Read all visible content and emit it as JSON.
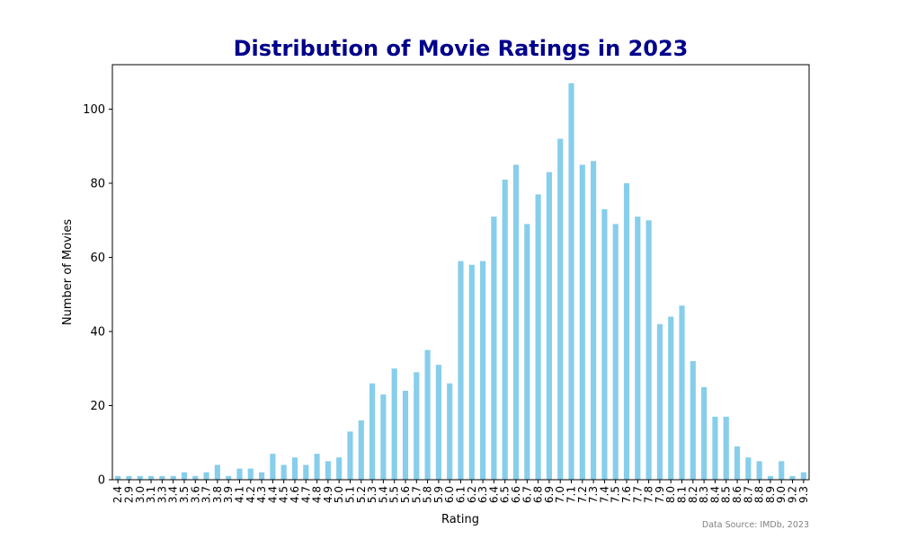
{
  "chart_data": {
    "type": "bar",
    "title": "Distribution of Movie Ratings in 2023",
    "xlabel": "Rating",
    "ylabel": "Number of Movies",
    "ylim": [
      0,
      112
    ],
    "yticks": [
      0,
      20,
      40,
      60,
      80,
      100
    ],
    "bar_color": "#87CEEB",
    "title_color": "#00008B",
    "grid": false,
    "categories": [
      "2.4",
      "2.9",
      "3.0",
      "3.1",
      "3.3",
      "3.4",
      "3.5",
      "3.6",
      "3.7",
      "3.8",
      "3.9",
      "4.1",
      "4.2",
      "4.3",
      "4.4",
      "4.5",
      "4.6",
      "4.7",
      "4.8",
      "4.9",
      "5.0",
      "5.1",
      "5.2",
      "5.3",
      "5.4",
      "5.5",
      "5.6",
      "5.7",
      "5.8",
      "5.9",
      "6.0",
      "6.1",
      "6.2",
      "6.3",
      "6.4",
      "6.5",
      "6.6",
      "6.7",
      "6.8",
      "6.9",
      "7.0",
      "7.1",
      "7.2",
      "7.3",
      "7.4",
      "7.5",
      "7.6",
      "7.7",
      "7.8",
      "7.9",
      "8.0",
      "8.1",
      "8.2",
      "8.3",
      "8.4",
      "8.5",
      "8.6",
      "8.7",
      "8.8",
      "8.9",
      "9.0",
      "9.2",
      "9.3"
    ],
    "values": [
      1,
      1,
      1,
      1,
      1,
      1,
      2,
      1,
      2,
      4,
      1,
      3,
      3,
      2,
      7,
      4,
      6,
      4,
      7,
      5,
      6,
      13,
      16,
      26,
      23,
      30,
      24,
      29,
      35,
      31,
      26,
      59,
      58,
      59,
      71,
      81,
      85,
      69,
      77,
      83,
      92,
      107,
      85,
      86,
      73,
      69,
      80,
      71,
      70,
      42,
      44,
      47,
      32,
      25,
      17,
      17,
      9,
      6,
      5,
      1,
      5,
      1,
      2
    ],
    "annotation": "Data Source: IMDb, 2023"
  }
}
